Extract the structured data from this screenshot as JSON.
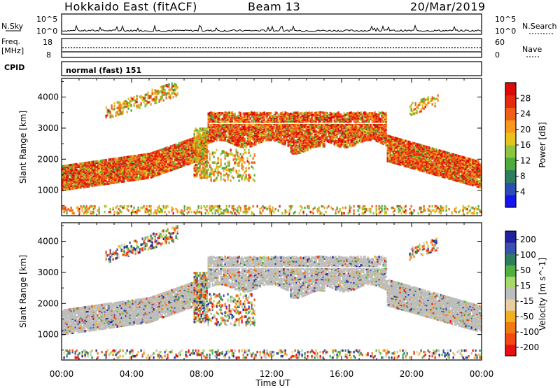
{
  "header": {
    "site": "Hokkaido East (fitACF)",
    "beam": "Beam 13",
    "date": "20/Mar/2019"
  },
  "top_panels": {
    "nsky_label": "N.Sky",
    "nsky_ticks": [
      "10^5",
      "10^0"
    ],
    "nsearch_label": "N.Search",
    "nsearch_ticks": [
      "10^5",
      "10^0"
    ],
    "freq_label": "Freq.",
    "freq_unit": "[MHz]",
    "freq_ticks": [
      "18",
      "8"
    ],
    "nave_label": "Nave",
    "nave_ticks": [
      "60",
      "0"
    ],
    "cpid_label": "CPID",
    "cpid_value": "normal (fast) 151"
  },
  "colors": {
    "power_scale": [
      "#1515ee",
      "#2a4fb0",
      "#2e7d5e",
      "#4faa3c",
      "#8cc63e",
      "#e6c31a",
      "#f59a1a",
      "#f06014",
      "#e62a10",
      "#dd0a0a"
    ],
    "velocity_scale": [
      "#e81010",
      "#f24a10",
      "#f07a10",
      "#f2b020",
      "#e6cfa0",
      "#bdbdbd",
      "#a8d86a",
      "#50b040",
      "#2e7d5e",
      "#3a4fb0",
      "#2020a0"
    ]
  },
  "chart_data": [
    {
      "type": "heatmap",
      "name": "power",
      "xlabel": "Time UT",
      "ylabel": "Slant Range [km]",
      "x_ticks": [
        "00:00",
        "04:00",
        "08:00",
        "12:00",
        "16:00",
        "20:00",
        "00:00"
      ],
      "x_range_hours": [
        0,
        24
      ],
      "y_ticks": [
        1000,
        2000,
        3000,
        4000
      ],
      "y_range_km": [
        180,
        4600
      ],
      "colorbar_label": "Power [dB]",
      "colorbar_ticks": [
        4,
        8,
        12,
        16,
        20,
        24,
        28
      ],
      "colorbar_range": [
        0,
        32
      ]
    },
    {
      "type": "heatmap",
      "name": "velocity",
      "xlabel": "Time UT",
      "ylabel": "Slant Range [km]",
      "x_ticks": [
        "00:00",
        "04:00",
        "08:00",
        "12:00",
        "16:00",
        "20:00",
        "00:00"
      ],
      "x_range_hours": [
        0,
        24
      ],
      "y_ticks": [
        1000,
        2000,
        3000,
        4000
      ],
      "y_range_km": [
        180,
        4600
      ],
      "colorbar_label": "Velocity [m s^-1]",
      "colorbar_ticks": [
        200,
        100,
        50,
        15,
        -15,
        -50,
        -100,
        -200
      ],
      "colorbar_range": [
        -250,
        250
      ]
    }
  ]
}
